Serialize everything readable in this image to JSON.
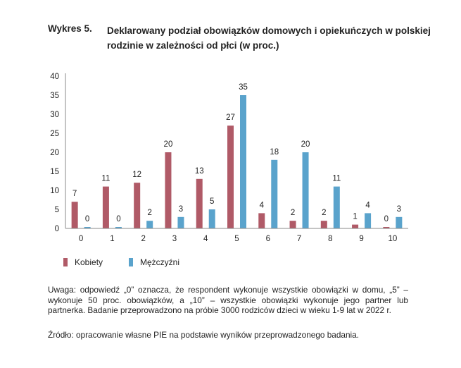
{
  "title": {
    "label": "Wykres 5.",
    "text": "Deklarowany podział obowiązków domowych i opiekuńczych w polskiej rodzinie w zależności od płci (w proc.)"
  },
  "chart_data": {
    "type": "bar",
    "categories": [
      "0",
      "1",
      "2",
      "3",
      "4",
      "5",
      "6",
      "7",
      "8",
      "9",
      "10"
    ],
    "series": [
      {
        "name": "Kobiety",
        "values": [
          7,
          11,
          12,
          20,
          13,
          27,
          4,
          2,
          2,
          1,
          0
        ],
        "color": "#b05a67"
      },
      {
        "name": "Mężczyźni",
        "values": [
          0,
          0,
          2,
          3,
          5,
          35,
          18,
          20,
          11,
          4,
          3
        ],
        "color": "#5aa3cc"
      }
    ],
    "ylim": [
      0,
      40
    ],
    "yticks": [
      0,
      5,
      10,
      15,
      20,
      25,
      30,
      35,
      40
    ],
    "grid": false,
    "legend_placement": "bottom-left"
  },
  "note": "Uwaga: odpowiedź „0” oznacza, że respondent wykonuje wszystkie obowiązki w domu, „5” – wykonuje 50 proc. obowiązków, a „10” – wszystkie obowiązki wykonuje jego partner lub partnerka. Badanie przeprowadzono na próbie 3000 rodziców dzieci w wieku 1-9 lat w 2022 r.",
  "source": "Źródło: opracowanie własne PIE na podstawie wyników przeprowadzonego badania."
}
